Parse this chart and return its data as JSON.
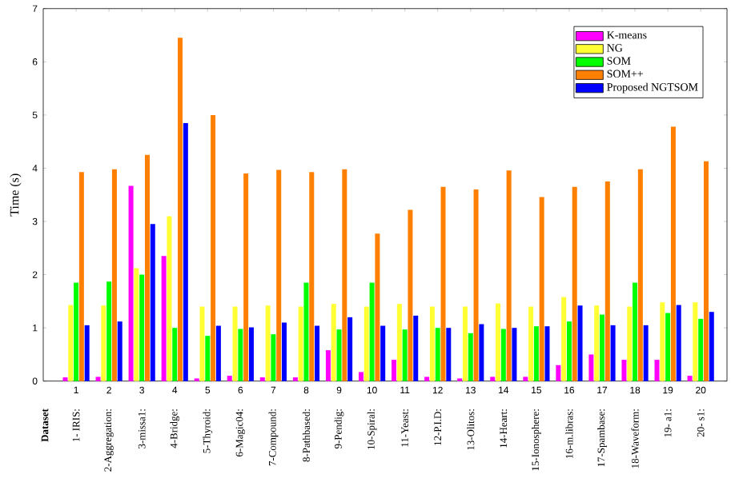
{
  "chart_data": {
    "type": "bar",
    "ylabel": "Time (s)",
    "categories": [
      "1",
      "2",
      "3",
      "4",
      "5",
      "6",
      "7",
      "8",
      "9",
      "10",
      "11",
      "12",
      "13",
      "14",
      "15",
      "16",
      "17",
      "18",
      "19",
      "20"
    ],
    "series": [
      {
        "name": "K-means",
        "color": "#ff00ff",
        "values": [
          0.07,
          0.08,
          3.67,
          2.35,
          0.05,
          0.1,
          0.07,
          0.07,
          0.58,
          0.17,
          0.4,
          0.08,
          0.05,
          0.08,
          0.08,
          0.3,
          0.5,
          0.4,
          0.4,
          0.1
        ]
      },
      {
        "name": "NG",
        "color": "#ffff33",
        "values": [
          1.43,
          1.42,
          2.12,
          3.1,
          1.4,
          1.4,
          1.42,
          1.4,
          1.45,
          1.4,
          1.45,
          1.4,
          1.4,
          1.46,
          1.4,
          1.58,
          1.42,
          1.4,
          1.48,
          1.48
        ]
      },
      {
        "name": "SOM",
        "color": "#00ff00",
        "values": [
          1.85,
          1.87,
          2.0,
          1.0,
          0.85,
          0.98,
          0.88,
          1.85,
          0.97,
          1.85,
          0.97,
          1.0,
          0.9,
          0.98,
          1.03,
          1.12,
          1.25,
          1.85,
          1.28,
          1.17
        ]
      },
      {
        "name": "SOM++",
        "color": "#ff7f00",
        "values": [
          3.93,
          3.98,
          4.25,
          6.45,
          5.0,
          3.9,
          3.97,
          3.93,
          3.98,
          2.77,
          3.22,
          3.65,
          3.6,
          3.96,
          3.46,
          3.65,
          3.75,
          3.98,
          4.78,
          4.13
        ]
      },
      {
        "name": "Proposed NGTSOM",
        "color": "#0000ff",
        "values": [
          1.05,
          1.12,
          2.95,
          4.85,
          1.04,
          1.01,
          1.1,
          1.04,
          1.2,
          1.04,
          1.23,
          1.0,
          1.07,
          1.0,
          1.03,
          1.42,
          1.05,
          1.05,
          1.43,
          1.3
        ]
      }
    ],
    "ylim": [
      0,
      7
    ],
    "yticks": [
      0,
      1,
      2,
      3,
      4,
      5,
      6,
      7
    ],
    "legend": "top right",
    "grid": false,
    "annotations": [
      "Dataset",
      "1- IRIS:",
      "2-Aggregation:",
      "3-missa1:",
      "4-Bridge:",
      "5-Thyroid:",
      "6-Magic04:",
      "7-Compound:",
      "8-Pathbased:",
      "9-Pendig:",
      "10-Spiral:",
      "11-Yeast:",
      "12-P.I.D:",
      "13-Olitos:",
      "14-Heart:",
      "15-Ionosphere:",
      "16-m.libras:",
      "17-Spambase:",
      "18-Waveform:",
      "19- a1:",
      "20- s1:"
    ]
  }
}
